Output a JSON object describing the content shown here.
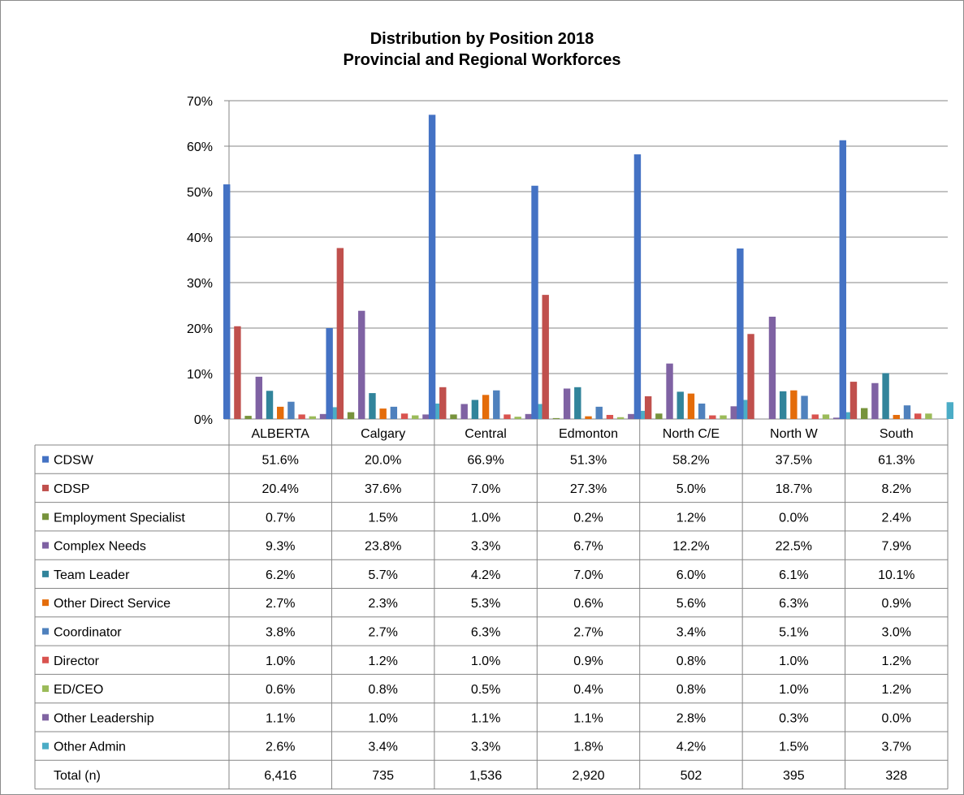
{
  "chart_data": {
    "type": "bar",
    "title": "Distribution by Position 2018",
    "subtitle": "Provincial and Regional Workforces",
    "ylim": [
      0,
      70
    ],
    "y_ticks": [
      "0%",
      "10%",
      "20%",
      "30%",
      "40%",
      "50%",
      "60%",
      "70%"
    ],
    "categories": [
      "ALBERTA",
      "Calgary",
      "Central",
      "Edmonton",
      "North C/E",
      "North W",
      "South"
    ],
    "grid": true,
    "legend_placement": "data-table",
    "series": [
      {
        "name": "CDSW",
        "color": "#4472c4",
        "values": [
          51.6,
          20.0,
          66.9,
          51.3,
          58.2,
          37.5,
          61.3
        ],
        "labels": [
          "51.6%",
          "20.0%",
          "66.9%",
          "51.3%",
          "58.2%",
          "37.5%",
          "61.3%"
        ]
      },
      {
        "name": "CDSP",
        "color": "#c0504d",
        "values": [
          20.4,
          37.6,
          7.0,
          27.3,
          5.0,
          18.7,
          8.2
        ],
        "labels": [
          "20.4%",
          "37.6%",
          "7.0%",
          "27.3%",
          "5.0%",
          "18.7%",
          "8.2%"
        ]
      },
      {
        "name": "Employment Specialist",
        "color": "#77933c",
        "values": [
          0.7,
          1.5,
          1.0,
          0.2,
          1.2,
          0.0,
          2.4
        ],
        "labels": [
          "0.7%",
          "1.5%",
          "1.0%",
          "0.2%",
          "1.2%",
          "0.0%",
          "2.4%"
        ]
      },
      {
        "name": "Complex  Needs",
        "color": "#7f62a3",
        "values": [
          9.3,
          23.8,
          3.3,
          6.7,
          12.2,
          22.5,
          7.9
        ],
        "labels": [
          "9.3%",
          "23.8%",
          "3.3%",
          "6.7%",
          "12.2%",
          "22.5%",
          "7.9%"
        ]
      },
      {
        "name": "Team Leader",
        "color": "#31849b",
        "values": [
          6.2,
          5.7,
          4.2,
          7.0,
          6.0,
          6.1,
          10.1
        ],
        "labels": [
          "6.2%",
          "5.7%",
          "4.2%",
          "7.0%",
          "6.0%",
          "6.1%",
          "10.1%"
        ]
      },
      {
        "name": "Other Direct Service",
        "color": "#e46c0a",
        "values": [
          2.7,
          2.3,
          5.3,
          0.6,
          5.6,
          6.3,
          0.9
        ],
        "labels": [
          "2.7%",
          "2.3%",
          "5.3%",
          "0.6%",
          "5.6%",
          "6.3%",
          "0.9%"
        ]
      },
      {
        "name": "Coordinator",
        "color": "#4f81bd",
        "values": [
          3.8,
          2.7,
          6.3,
          2.7,
          3.4,
          5.1,
          3.0
        ],
        "labels": [
          "3.8%",
          "2.7%",
          "6.3%",
          "2.7%",
          "3.4%",
          "5.1%",
          "3.0%"
        ]
      },
      {
        "name": "Director",
        "color": "#d9534f",
        "values": [
          1.0,
          1.2,
          1.0,
          0.9,
          0.8,
          1.0,
          1.2
        ],
        "labels": [
          "1.0%",
          "1.2%",
          "1.0%",
          "0.9%",
          "0.8%",
          "1.0%",
          "1.2%"
        ]
      },
      {
        "name": "ED/CEO",
        "color": "#9bbb59",
        "values": [
          0.6,
          0.8,
          0.5,
          0.4,
          0.8,
          1.0,
          1.2
        ],
        "labels": [
          "0.6%",
          "0.8%",
          "0.5%",
          "0.4%",
          "0.8%",
          "1.0%",
          "1.2%"
        ]
      },
      {
        "name": "Other Leadership",
        "color": "#8064a2",
        "values": [
          1.1,
          1.0,
          1.1,
          1.1,
          2.8,
          0.3,
          0.0
        ],
        "labels": [
          "1.1%",
          "1.0%",
          "1.1%",
          "1.1%",
          "2.8%",
          "0.3%",
          "0.0%"
        ]
      },
      {
        "name": "Other Admin",
        "color": "#4bacc6",
        "values": [
          2.6,
          3.4,
          3.3,
          1.8,
          4.2,
          1.5,
          3.7
        ],
        "labels": [
          "2.6%",
          "3.4%",
          "3.3%",
          "1.8%",
          "4.2%",
          "1.5%",
          "3.7%"
        ]
      }
    ],
    "total_row": {
      "label": "Total (n)",
      "values": [
        "6,416",
        "735",
        "1,536",
        "2,920",
        "502",
        "395",
        "328"
      ]
    }
  }
}
